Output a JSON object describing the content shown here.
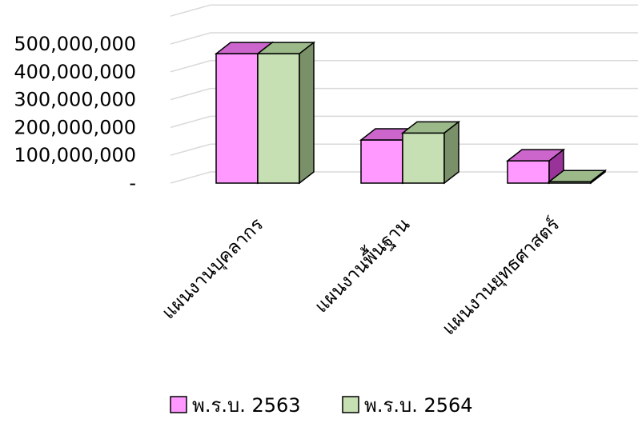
{
  "chart_data": {
    "type": "bar",
    "title": "",
    "xlabel": "",
    "ylabel": "",
    "categories": [
      "แผนงานบุคลากร",
      "แผนงานพื้นฐาน",
      "แผนงานยุทธศาสตร์"
    ],
    "series": [
      {
        "name": "พ.ร.บ. 2563",
        "values": [
          465000000,
          155000000,
          80000000
        ]
      },
      {
        "name": "พ.ร.บ. 2564",
        "values": [
          465000000,
          180000000,
          5000000
        ]
      }
    ],
    "ylim": [
      0,
      600000000
    ],
    "yticks": [
      0,
      100000000,
      200000000,
      300000000,
      400000000,
      500000000
    ],
    "ytick_labels": [
      "-",
      "100,000,000",
      "200,000,000",
      "300,000,000",
      "400,000,000",
      "500,000,000"
    ],
    "grid": true,
    "three_d": true,
    "legend_position": "bottom",
    "colors": {
      "series_front": [
        "#ff99ff",
        "#c6e0b4"
      ],
      "series_top": [
        "#cc66cc",
        "#9cb98a"
      ],
      "series_side": [
        "#993399",
        "#7a9068"
      ],
      "grid": "#d9d9d9"
    }
  }
}
